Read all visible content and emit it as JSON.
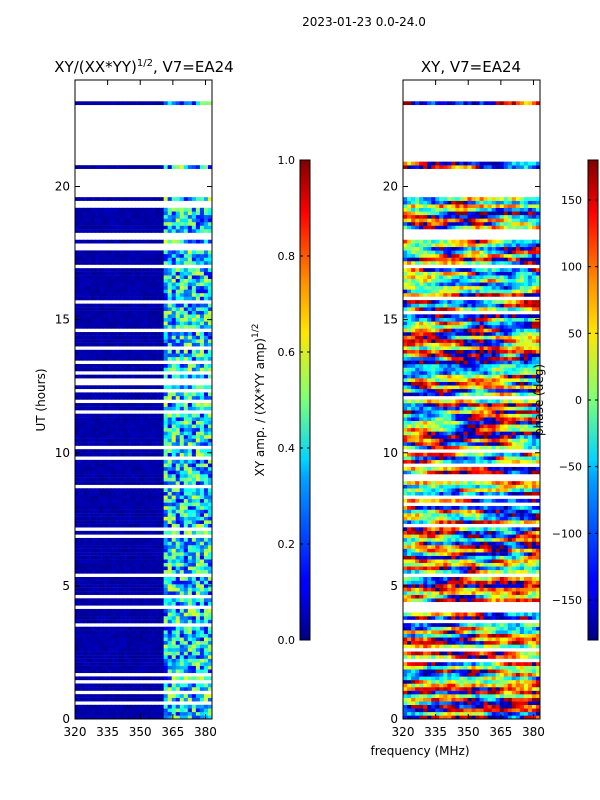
{
  "figure": {
    "suptitle": "2023-01-23 0.0-24.0",
    "common_xlabel": "frequency (MHz)"
  },
  "chart_data": [
    {
      "type": "heatmap",
      "title_main": "XY/(XX*YY)",
      "title_sup": "1/2",
      "title_tail": ", V7=EA24",
      "xlabel": "",
      "ylabel": "UT (hours)",
      "xlim": [
        320,
        383
      ],
      "ylim": [
        0,
        24
      ],
      "xticks": [
        320,
        335,
        350,
        365,
        380
      ],
      "xtick_labels": [
        "320",
        "335",
        "350",
        "365",
        "380"
      ],
      "yticks": [
        0,
        5,
        10,
        15,
        20
      ],
      "ytick_labels": [
        "0",
        "5",
        "10",
        "15",
        "20"
      ],
      "colormap": "jet",
      "colorbar": {
        "label_main": "XY amp. / (XX*YY amp)",
        "label_sup": "1/2",
        "range": [
          0.0,
          1.0
        ],
        "ticks": [
          0.0,
          0.2,
          0.4,
          0.6,
          0.8,
          1.0
        ],
        "tick_labels": [
          "0.0",
          "0.2",
          "0.4",
          "0.6",
          "0.8",
          "1.0"
        ]
      },
      "data_summary": {
        "low_region": {
          "freq_range": [
            320,
            360
          ],
          "approx_value": 0.02
        },
        "high_region": {
          "freq_range": [
            360,
            383
          ],
          "approx_value_range": [
            0.1,
            0.6
          ]
        },
        "gap_hours": [
          [
            18.0,
            18.3
          ],
          [
            19.6,
            20.7
          ],
          [
            21.0,
            23.1
          ],
          [
            23.2,
            24.0
          ]
        ]
      }
    },
    {
      "type": "heatmap",
      "title": "XY, V7=EA24",
      "xlabel": "frequency (MHz)",
      "ylabel": "",
      "xlim": [
        320,
        383
      ],
      "ylim": [
        0,
        24
      ],
      "xticks": [
        320,
        335,
        350,
        365,
        380
      ],
      "xtick_labels": [
        "320",
        "335",
        "350",
        "365",
        "380"
      ],
      "yticks": [
        0,
        5,
        10,
        15,
        20
      ],
      "ytick_labels": [
        "0",
        "5",
        "10",
        "15",
        "20"
      ],
      "colormap": "jet",
      "colorbar": {
        "label": "phase (deg)",
        "range": [
          -180,
          180
        ],
        "ticks": [
          -150,
          -100,
          -50,
          0,
          50,
          100,
          150
        ],
        "tick_labels": [
          "−150",
          "−100",
          "−50",
          "0",
          "50",
          "100",
          "150"
        ]
      },
      "data_summary": {
        "phase_range_deg": [
          -180,
          180
        ],
        "gap_hours": [
          [
            18.0,
            18.3
          ],
          [
            19.6,
            20.7
          ],
          [
            21.0,
            23.1
          ],
          [
            23.2,
            24.0
          ]
        ]
      }
    }
  ]
}
